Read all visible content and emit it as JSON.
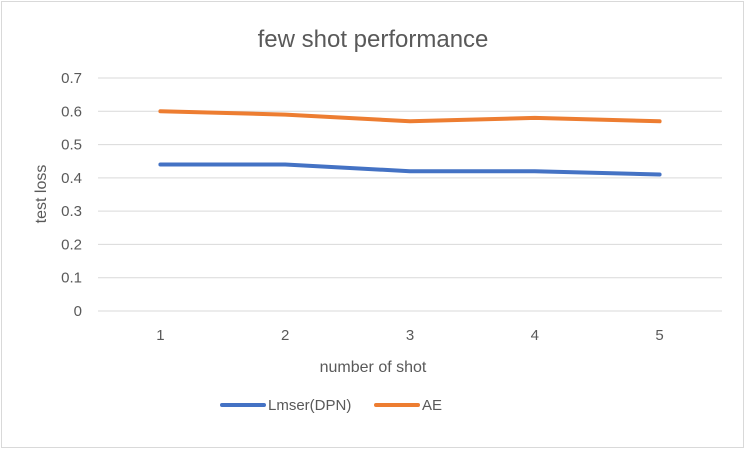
{
  "chart_data": {
    "type": "line",
    "title": "few shot performance",
    "xlabel": "number of shot",
    "ylabel": "test loss",
    "x": [
      "1",
      "2",
      "3",
      "4",
      "5"
    ],
    "ylim": [
      0,
      0.7
    ],
    "yticks": [
      "0",
      "0.1",
      "0.2",
      "0.3",
      "0.4",
      "0.5",
      "0.6",
      "0.7"
    ],
    "grid": true,
    "legend_position": "bottom",
    "series": [
      {
        "name": "Lmser(DPN)",
        "color": "#4472c4",
        "values": [
          0.44,
          0.44,
          0.42,
          0.42,
          0.41
        ]
      },
      {
        "name": "AE",
        "color": "#ed7d31",
        "values": [
          0.6,
          0.59,
          0.57,
          0.58,
          0.57
        ]
      }
    ]
  }
}
